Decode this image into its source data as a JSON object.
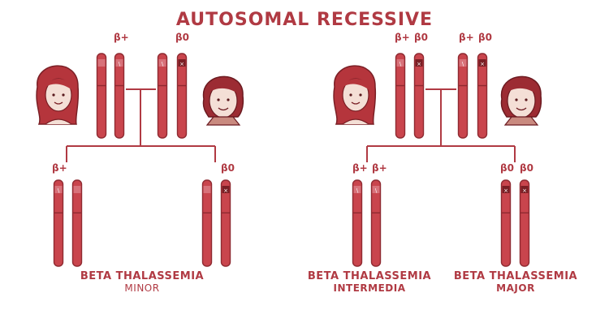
{
  "title": "AUTOSOMAL RECESSIVE",
  "labels": {
    "beta_plus": "β+",
    "beta_zero": "β0"
  },
  "outcomes": {
    "minor": {
      "line1": "BETA THALASSEMIA",
      "line2": "MINOR"
    },
    "intermedia": {
      "line1": "BETA THALASSEMIA",
      "line2": "INTERMEDIA"
    },
    "major": {
      "line1": "BETA THALASSEMIA",
      "line2": "MAJOR"
    }
  },
  "colors": {
    "accent": "#b03a43",
    "chromosome_fill": "#c9454d",
    "chromosome_outline": "#8f2a31",
    "skin": "#f4dfd6",
    "hair_female": "#b5353c",
    "hair_male": "#9c2c33"
  }
}
